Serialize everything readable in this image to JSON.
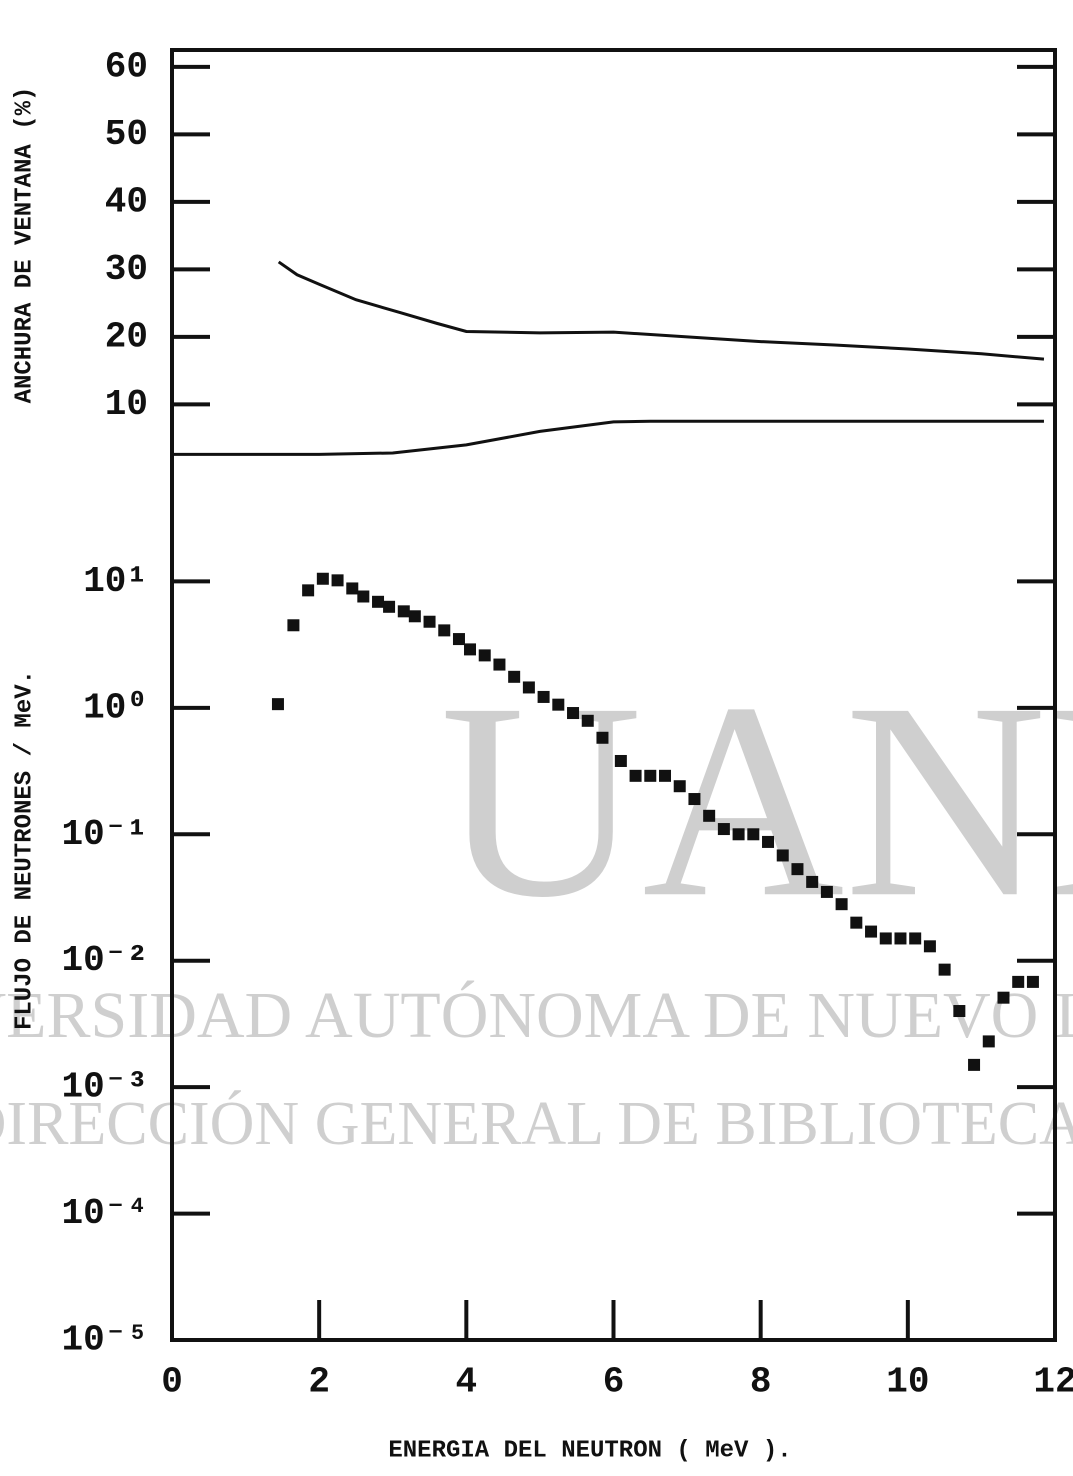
{
  "chart_data": [
    {
      "type": "line",
      "ylabel": "ANCHURA DE VENTANA (%)",
      "xlim": [
        0,
        12
      ],
      "ylim": [
        2.5,
        62.5
      ],
      "yticks": [
        10,
        20,
        30,
        40,
        50,
        60
      ],
      "color": "#111",
      "series": [
        {
          "x": [
            1.45,
            1.7,
            2.0,
            2.5,
            3.1,
            3.6,
            4.0,
            5.0,
            6.0,
            7.0,
            8.0,
            9.0,
            10.0,
            11.0,
            11.85
          ],
          "values": [
            31.1,
            29.2,
            27.8,
            25.5,
            23.6,
            22.0,
            20.8,
            20.6,
            20.7,
            20.0,
            19.3,
            18.8,
            18.2,
            17.5,
            16.7
          ]
        },
        {
          "x": [
            0,
            1.0,
            2.0,
            3.0,
            4.0,
            5.0,
            6.0,
            6.5,
            8.0,
            10.0,
            11.85
          ],
          "values": [
            2.6,
            2.6,
            2.6,
            2.8,
            4.0,
            6.0,
            7.4,
            7.5,
            7.5,
            7.5,
            7.5
          ]
        }
      ]
    },
    {
      "type": "scatter",
      "ylabel": "FLUJO DE NEUTRONES / MeV.",
      "xlabel": "ENERGIA DEL NEUTRON  ( MeV ).",
      "xlim": [
        0,
        12
      ],
      "xticks": [
        0,
        2,
        4,
        6,
        8,
        10,
        12
      ],
      "ylog": true,
      "ylim": [
        1e-05,
        100
      ],
      "yticks": [
        {
          "value": 1e-05,
          "label": "10⁻⁵"
        },
        {
          "value": 0.0001,
          "label": "10⁻⁴"
        },
        {
          "value": 0.001,
          "label": "10⁻³"
        },
        {
          "value": 0.01,
          "label": "10⁻²"
        },
        {
          "value": 0.1,
          "label": "10⁻¹"
        },
        {
          "value": 1,
          "label": "10⁰"
        },
        {
          "value": 10,
          "label": "10¹"
        }
      ],
      "color": "#111",
      "x": [
        1.44,
        1.65,
        1.85,
        2.05,
        2.25,
        2.45,
        2.6,
        2.8,
        2.95,
        3.15,
        3.3,
        3.5,
        3.7,
        3.9,
        4.05,
        4.25,
        4.45,
        4.65,
        4.85,
        5.05,
        5.25,
        5.45,
        5.65,
        5.85,
        6.1,
        6.3,
        6.5,
        6.7,
        6.9,
        7.1,
        7.3,
        7.5,
        7.7,
        7.9,
        8.1,
        8.3,
        8.5,
        8.7,
        8.9,
        9.1,
        9.3,
        9.5,
        9.7,
        9.9,
        10.1,
        10.3,
        10.5,
        10.7,
        10.9,
        11.1,
        11.3,
        11.5,
        11.7
      ],
      "values": [
        1.07,
        4.5,
        8.5,
        10.5,
        10.2,
        8.8,
        7.6,
        6.9,
        6.3,
        5.8,
        5.3,
        4.8,
        4.1,
        3.5,
        2.9,
        2.6,
        2.2,
        1.76,
        1.45,
        1.22,
        1.06,
        0.91,
        0.79,
        0.58,
        0.38,
        0.29,
        0.29,
        0.29,
        0.24,
        0.19,
        0.14,
        0.11,
        0.1,
        0.1,
        0.087,
        0.068,
        0.053,
        0.042,
        0.035,
        0.028,
        0.02,
        0.017,
        0.015,
        0.015,
        0.015,
        0.013,
        0.0085,
        0.004,
        0.0015,
        0.0023,
        0.0051,
        0.0068,
        0.0068
      ]
    }
  ],
  "watermark": {
    "logo": "UANL",
    "line1": "UNIVERSIDAD AUTÓNOMA DE NUEVO LEÓN",
    "line2": "DIRECCIÓN GENERAL DE BIBLIOTECAS"
  }
}
